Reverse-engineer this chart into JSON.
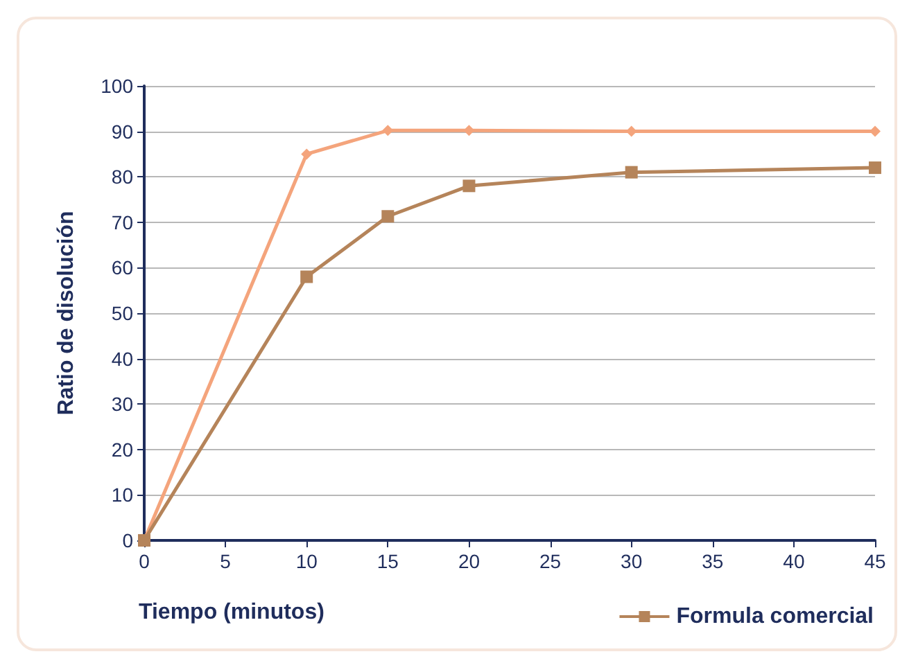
{
  "chart_data": {
    "type": "line",
    "xlabel": "Tiempo (minutos)",
    "ylabel": "Ratio de disolución",
    "x": [
      0,
      10,
      15,
      20,
      30,
      45
    ],
    "series": [
      {
        "color": "#f4a47c",
        "marker": "diamond",
        "values": [
          0,
          85,
          90.2,
          90.2,
          90,
          90
        ]
      },
      {
        "name": "Formula comercial",
        "color": "#b5845a",
        "marker": "square",
        "values": [
          0,
          58,
          71.3,
          78,
          81,
          82
        ]
      }
    ],
    "xlim": [
      0,
      45
    ],
    "xticks": [
      0,
      5,
      10,
      15,
      20,
      25,
      30,
      35,
      40,
      45
    ],
    "ylim": [
      0,
      100
    ],
    "yticks": [
      0,
      10,
      20,
      30,
      40,
      50,
      60,
      70,
      80,
      90,
      100
    ],
    "grid": "y",
    "legend": "bottom right",
    "line_style": "solid"
  }
}
